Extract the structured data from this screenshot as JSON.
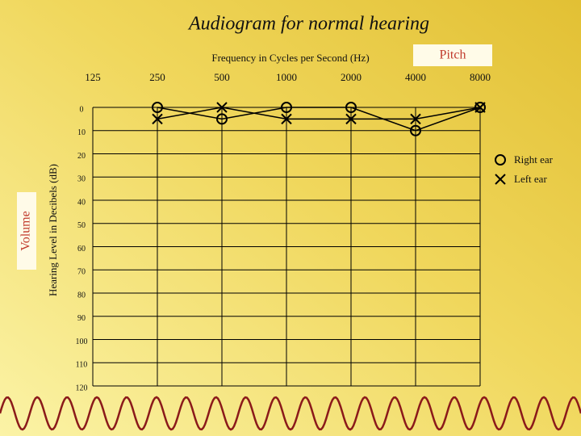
{
  "chart_data": {
    "type": "line",
    "title": "Audiogram for normal hearing",
    "x_label": "Frequency in Cycles per Second (Hz)",
    "y_label": "Hearing Level in Decibels (dB)",
    "x_annotation": "Pitch",
    "y_annotation": "Volume",
    "x": [
      250,
      500,
      1000,
      2000,
      4000,
      8000
    ],
    "xlim": [
      125,
      8000
    ],
    "xticks": [
      125,
      250,
      500,
      1000,
      2000,
      4000,
      8000
    ],
    "x_log": true,
    "ylim": [
      0,
      120
    ],
    "yticks": [
      0,
      10,
      20,
      30,
      40,
      50,
      60,
      70,
      80,
      90,
      100,
      110,
      120
    ],
    "y_inverted": true,
    "grid": true,
    "legend": "right",
    "series": [
      {
        "name": "Right ear",
        "color": "#000000",
        "marker": "o",
        "values": [
          0,
          5,
          0,
          0,
          10,
          0
        ]
      },
      {
        "name": "Left ear",
        "color": "#000000",
        "marker": "x",
        "values": [
          5,
          0,
          5,
          5,
          5,
          0
        ]
      }
    ]
  }
}
